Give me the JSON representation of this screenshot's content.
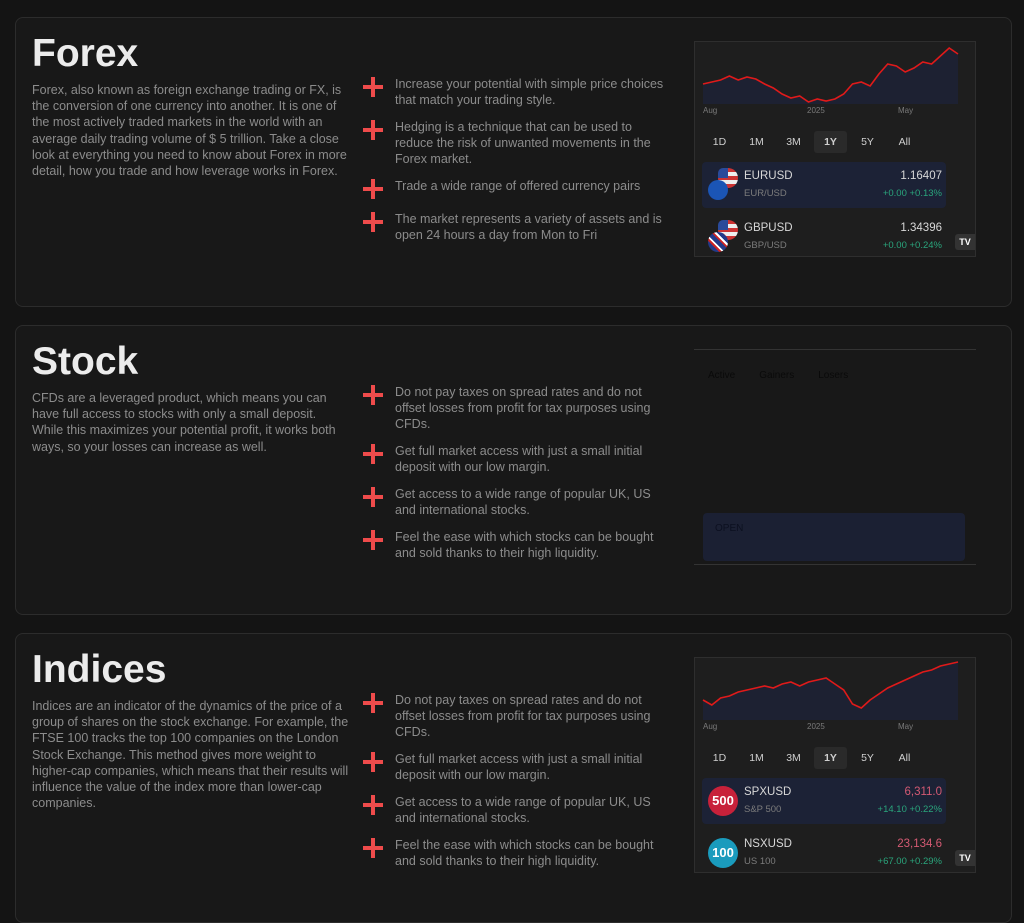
{
  "sections": [
    {
      "title": "Forex",
      "description": "Forex, also known as foreign exchange trading or FX, is the conversion of one currency into another. It is one of the most actively traded markets in the world with an average daily trading volume of $ 5 trillion. Take a close look at everything you need to know about Forex in more detail, how you trade and how leverage works in Forex.",
      "features": [
        "Increase your potential with simple price choices that match your trading style.",
        "Hedging is a technique that can be used to reduce the risk of unwanted movements in the Forex market.",
        "Trade a wide range of offered currency pairs",
        "The market represents a variety of assets and is open 24 hours a day from Mon to Fri"
      ],
      "widget": {
        "axis": [
          "Aug",
          "2025",
          "May"
        ],
        "ranges": [
          "1D",
          "1M",
          "3M",
          "1Y",
          "5Y",
          "All"
        ],
        "selected_range": "1Y",
        "rows": [
          {
            "symbol": "EURUSD",
            "name": "EUR/USD",
            "price": "1.16407",
            "change": "+0.00",
            "change_pct": "+0.13%",
            "icon": "eu-us-flags-icon"
          },
          {
            "symbol": "GBPUSD",
            "name": "GBP/USD",
            "price": "1.34396",
            "change": "+0.00",
            "change_pct": "+0.24%",
            "icon": "gb-us-flags-icon"
          }
        ]
      }
    },
    {
      "title": "Stock",
      "description": "CFDs are a leveraged product, which means you can have full access to stocks with only a small deposit. While this maximizes your potential profit, it works both ways, so your losses can increase as well.",
      "features": [
        "Do not pay taxes on spread rates and do not offset losses from profit for tax purposes using CFDs.",
        "Get full market access with just a small initial deposit with our low margin.",
        "Get access to a wide range of popular UK, US and international stocks.",
        "Feel the ease with which stocks can be bought and sold thanks to their high liquidity."
      ],
      "widget": {
        "tabs": [
          "Active",
          "Gainers",
          "Losers"
        ],
        "status": "OPEN"
      }
    },
    {
      "title": "Indices",
      "description": "Indices are an indicator of the dynamics of the price of a group of shares on the stock exchange. For example, the FTSE 100 tracks the top 100 companies on the London Stock Exchange. This method gives more weight to higher-cap companies, which means that their results will influence the value of the index more than lower-cap companies.",
      "features": [
        "Do not pay taxes on spread rates and do not offset losses from profit for tax purposes using CFDs.",
        "Get full market access with just a small initial deposit with our low margin.",
        "Get access to a wide range of popular UK, US and international stocks.",
        "Feel the ease with which stocks can be bought and sold thanks to their high liquidity."
      ],
      "widget": {
        "axis": [
          "Aug",
          "2025",
          "May"
        ],
        "ranges": [
          "1D",
          "1M",
          "3M",
          "1Y",
          "5Y",
          "All"
        ],
        "selected_range": "1Y",
        "rows": [
          {
            "symbol": "SPXUSD",
            "name": "S&P 500",
            "price": "6,311.0",
            "change": "+14.10",
            "change_pct": "+0.22%",
            "icon": "500",
            "badge_color": "#c8213a"
          },
          {
            "symbol": "NSXUSD",
            "name": "US 100",
            "price": "23,134.6",
            "change": "+67.00",
            "change_pct": "+0.29%",
            "icon": "100",
            "badge_color": "#1a9bbd"
          }
        ]
      }
    }
  ],
  "colors": {
    "accent": "#ef4b4b",
    "line": "#e01a1a",
    "up": "#2aa57c",
    "down": "#d45a73"
  },
  "tv_logo": "TV"
}
